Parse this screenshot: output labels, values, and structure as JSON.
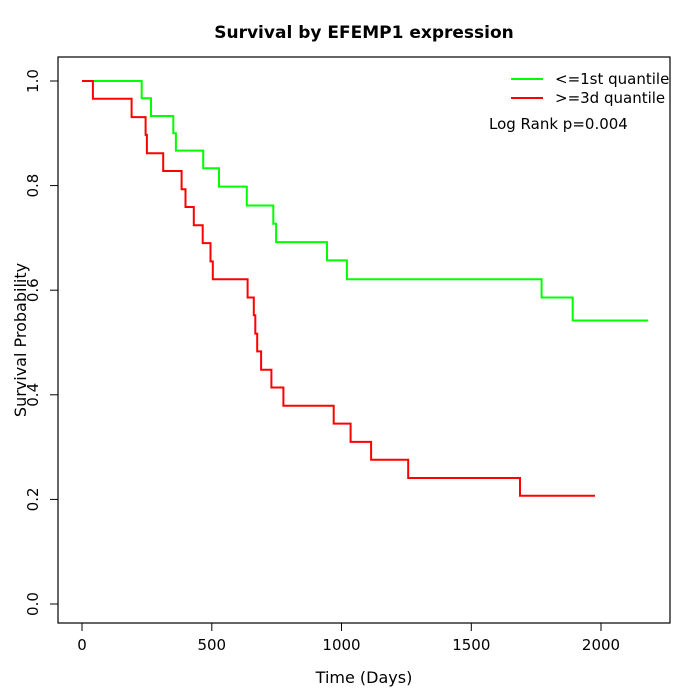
{
  "chart_data": {
    "type": "line",
    "subtype": "kaplan-meier-step-curves",
    "title": "Survival by EFEMP1 expression",
    "xlabel": "Time (Days)",
    "ylabel": "Survival Probability",
    "xlim": [
      0,
      2200
    ],
    "ylim": [
      0.0,
      1.0
    ],
    "x_ticks": [
      0,
      500,
      1000,
      1500,
      2000
    ],
    "y_ticks": [
      0.0,
      0.2,
      0.4,
      0.6,
      0.8,
      1.0
    ],
    "grid": false,
    "legend_position": "top-right",
    "annotation": "Log Rank p=0.004",
    "series": [
      {
        "name": "<=1st quantile",
        "color": "#00ff00",
        "end_time": 2182,
        "steps": [
          [
            0,
            1.0
          ],
          [
            230,
            0.967
          ],
          [
            266,
            0.933
          ],
          [
            352,
            0.9
          ],
          [
            362,
            0.867
          ],
          [
            467,
            0.833
          ],
          [
            528,
            0.798
          ],
          [
            635,
            0.762
          ],
          [
            737,
            0.727
          ],
          [
            748,
            0.692
          ],
          [
            944,
            0.657
          ],
          [
            1021,
            0.621
          ],
          [
            1771,
            0.586
          ],
          [
            1891,
            0.542
          ]
        ]
      },
      {
        "name": ">=3d quantile",
        "color": "#ff0000",
        "end_time": 1977,
        "steps": [
          [
            0,
            1.0
          ],
          [
            42,
            0.966
          ],
          [
            191,
            0.931
          ],
          [
            245,
            0.897
          ],
          [
            250,
            0.862
          ],
          [
            313,
            0.828
          ],
          [
            384,
            0.793
          ],
          [
            399,
            0.759
          ],
          [
            431,
            0.724
          ],
          [
            465,
            0.69
          ],
          [
            495,
            0.655
          ],
          [
            504,
            0.621
          ],
          [
            638,
            0.586
          ],
          [
            662,
            0.552
          ],
          [
            668,
            0.517
          ],
          [
            675,
            0.483
          ],
          [
            690,
            0.448
          ],
          [
            730,
            0.414
          ],
          [
            776,
            0.379
          ],
          [
            970,
            0.345
          ],
          [
            1035,
            0.31
          ],
          [
            1114,
            0.276
          ],
          [
            1257,
            0.241
          ],
          [
            1688,
            0.207
          ]
        ]
      }
    ]
  }
}
